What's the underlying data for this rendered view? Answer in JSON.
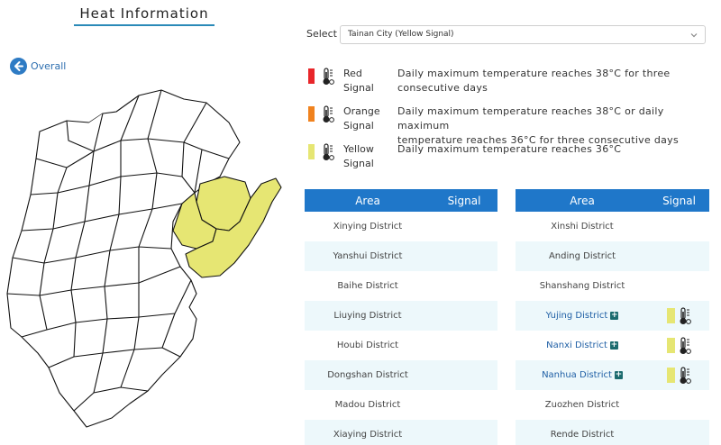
{
  "page": {
    "title": "Heat Information"
  },
  "nav": {
    "overall_label": "Overall",
    "overall_icon": "arrow-left-icon"
  },
  "select": {
    "label": "Select",
    "value": "Tainan City (Yellow Signal)"
  },
  "legend": [
    {
      "id": "red",
      "name_line1": "Red",
      "name_line2": "Signal",
      "color": "#e8262a",
      "icon": "thermometer-icon",
      "desc_line1": "Daily maximum temperature reaches 38°C for three",
      "desc_line2": "consecutive days"
    },
    {
      "id": "orange",
      "name_line1": "Orange",
      "name_line2": "Signal",
      "color": "#f0821e",
      "icon": "thermometer-icon",
      "desc_line1": "Daily maximum temperature reaches 38°C or daily maximum",
      "desc_line2": "temperature reaches 36°C for three consecutive days"
    },
    {
      "id": "yellow",
      "name_line1": "Yellow",
      "name_line2": "Signal",
      "color": "#e6e673",
      "icon": "thermometer-icon",
      "desc_line1": "Daily maximum temperature reaches 36°C",
      "desc_line2": ""
    }
  ],
  "table_headers": {
    "area": "Area",
    "signal": "Signal"
  },
  "left_table": [
    {
      "name": "Xinying District",
      "signal": ""
    },
    {
      "name": "Yanshui District",
      "signal": ""
    },
    {
      "name": "Baihe District",
      "signal": ""
    },
    {
      "name": "Liuying District",
      "signal": ""
    },
    {
      "name": "Houbi District",
      "signal": ""
    },
    {
      "name": "Dongshan District",
      "signal": ""
    },
    {
      "name": "Madou District",
      "signal": ""
    },
    {
      "name": "Xiaying District",
      "signal": ""
    }
  ],
  "right_table": [
    {
      "name": "Xinshi District",
      "signal": ""
    },
    {
      "name": "Anding District",
      "signal": ""
    },
    {
      "name": "Shanshang District",
      "signal": ""
    },
    {
      "name": "Yujing District",
      "signal": "yellow",
      "expandable": "+"
    },
    {
      "name": "Nanxi District",
      "signal": "yellow",
      "expandable": "+"
    },
    {
      "name": "Nanhua District",
      "signal": "yellow",
      "expandable": "+"
    },
    {
      "name": "Zuozhen District",
      "signal": ""
    },
    {
      "name": "Rende District",
      "signal": ""
    }
  ],
  "colors": {
    "accent": "#1f77c9",
    "row_alt": "#edf8fb",
    "highlight": "#e6e673"
  }
}
